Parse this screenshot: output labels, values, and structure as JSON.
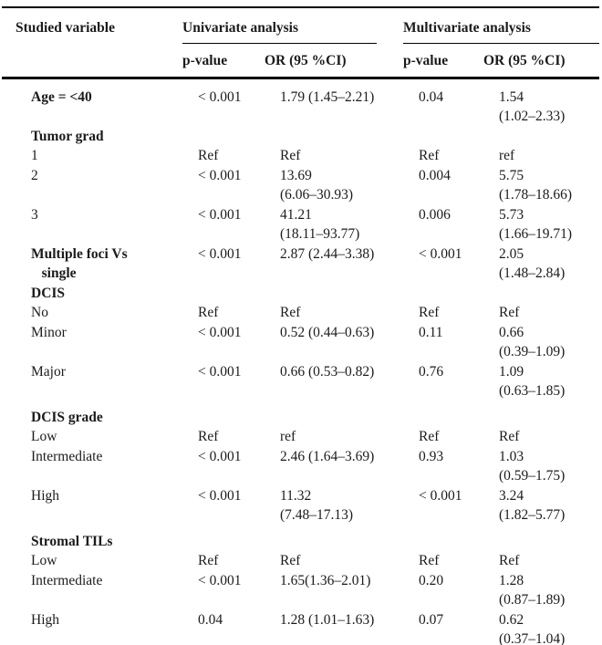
{
  "table": {
    "header": {
      "studied_variable": "Studied variable",
      "univariate_group": "Univariate analysis",
      "multivariate_group": "Multivariate analysis",
      "p_value": "p-value",
      "or_ci": "OR (95 %CI)"
    },
    "colors": {
      "text": "#1b1b1b",
      "rule": "#000000",
      "background": "#ffffff"
    },
    "rows": [
      {
        "type": "variable",
        "label": "Age = <40",
        "uni_p": "< 0.001",
        "uni_or": "1.79 (1.45–2.21)",
        "multi_p": "0.04",
        "multi_or": "1.54\n(1.02–2.33)"
      },
      {
        "type": "section",
        "label": "Tumor grad"
      },
      {
        "type": "level",
        "label": "1",
        "uni_p": "Ref",
        "uni_or": "Ref",
        "multi_p": "Ref",
        "multi_or": "ref"
      },
      {
        "type": "level",
        "label": "2",
        "uni_p": "< 0.001",
        "uni_or": "13.69\n(6.06–30.93)",
        "multi_p": "0.004",
        "multi_or": "5.75\n(1.78–18.66)"
      },
      {
        "type": "level",
        "label": "3",
        "uni_p": "< 0.001",
        "uni_or": "41.21\n(18.11–93.77)",
        "multi_p": "0.006",
        "multi_or": "5.73\n(1.66–19.71)"
      },
      {
        "type": "variable",
        "label": "Multiple foci Vs\n   single",
        "uni_p": "< 0.001",
        "uni_or": "2.87 (2.44–3.38)",
        "multi_p": "< 0.001",
        "multi_or": "2.05\n(1.48–2.84)"
      },
      {
        "type": "section",
        "label": "DCIS"
      },
      {
        "type": "level",
        "label": "No",
        "uni_p": "Ref",
        "uni_or": "Ref",
        "multi_p": "Ref",
        "multi_or": "Ref"
      },
      {
        "type": "level",
        "label": "Minor",
        "uni_p": "< 0.001",
        "uni_or": "0.52 (0.44–0.63)",
        "multi_p": "0.11",
        "multi_or": "0.66\n(0.39–1.09)"
      },
      {
        "type": "level",
        "label": "Major",
        "uni_p": "< 0.001",
        "uni_or": "0.66 (0.53–0.82)",
        "multi_p": "0.76",
        "multi_or": "1.09\n(0.63–1.85)"
      },
      {
        "type": "section",
        "label": "DCIS grade",
        "gap_before": true
      },
      {
        "type": "level",
        "label": "Low",
        "uni_p": "Ref",
        "uni_or": "ref",
        "multi_p": "Ref",
        "multi_or": "Ref"
      },
      {
        "type": "level",
        "label": "Intermediate",
        "uni_p": "< 0.001",
        "uni_or": "2.46 (1.64–3.69)",
        "multi_p": "0.93",
        "multi_or": "1.03\n(0.59–1.75)"
      },
      {
        "type": "level",
        "label": "High",
        "uni_p": "< 0.001",
        "uni_or": "11.32\n(7.48–17.13)",
        "multi_p": "< 0.001",
        "multi_or": "3.24\n(1.82–5.77)"
      },
      {
        "type": "section",
        "label": "Stromal TILs",
        "gap_before": true
      },
      {
        "type": "level",
        "label": "Low",
        "uni_p": "Ref",
        "uni_or": "Ref",
        "multi_p": "Ref",
        "multi_or": "Ref"
      },
      {
        "type": "level",
        "label": "Intermediate",
        "uni_p": "< 0.001",
        "uni_or": "1.65(1.36–2.01)",
        "multi_p": "0.20",
        "multi_or": "1.28\n(0.87–1.89)"
      },
      {
        "type": "level",
        "label": "High",
        "uni_p": "0.04",
        "uni_or": "1.28 (1.01–1.63)",
        "multi_p": "0.07",
        "multi_or": "0.62\n(0.37–1.04)"
      }
    ]
  }
}
